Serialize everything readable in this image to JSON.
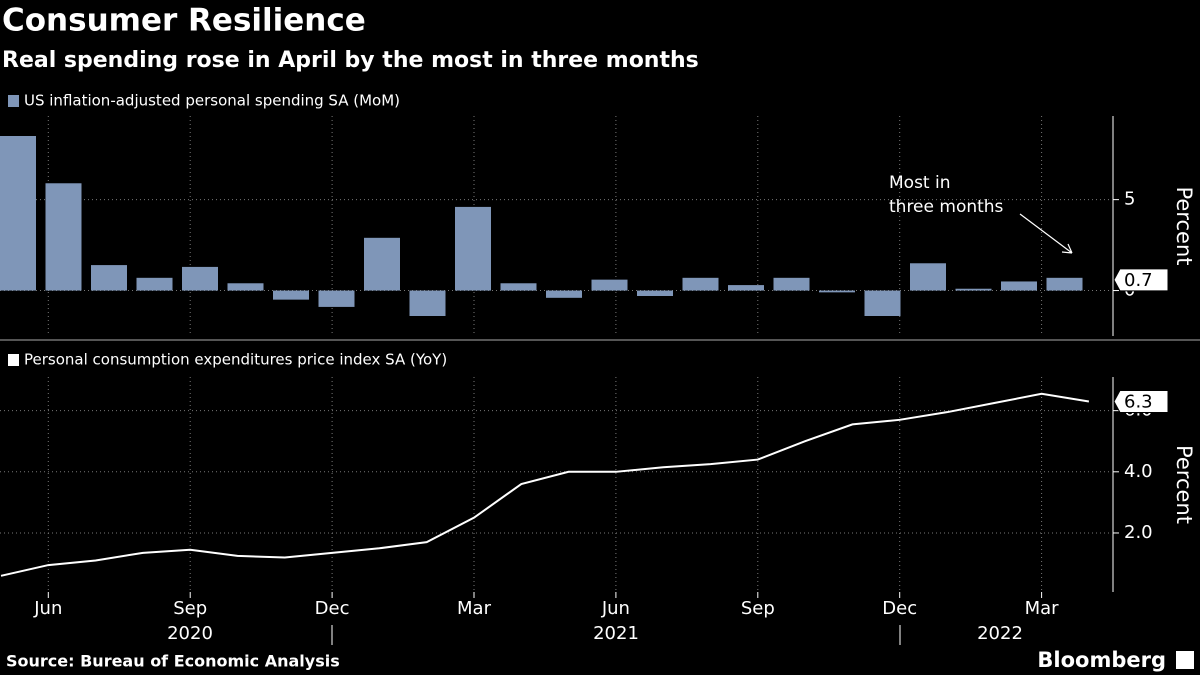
{
  "title": "Consumer Resilience",
  "subtitle": "Real spending rose in April by the most in three months",
  "source": "Source: Bureau of Economic Analysis",
  "brand": "Bloomberg",
  "years": [
    "2020",
    "2021",
    "2022"
  ],
  "chart_data": [
    {
      "type": "bar",
      "series": [
        {
          "name": "US inflation-adjusted personal spending SA (MoM)",
          "color": "#7f96b8",
          "values": [
            8.5,
            5.9,
            1.4,
            0.7,
            1.3,
            0.4,
            -0.5,
            -0.9,
            2.9,
            -1.4,
            4.6,
            0.4,
            -0.4,
            0.6,
            -0.3,
            0.7,
            0.3,
            0.7,
            -0.1,
            -1.4,
            1.5,
            0.1,
            0.5,
            0.7
          ]
        }
      ],
      "categories": [
        null,
        "Jun",
        null,
        null,
        "Sep",
        null,
        null,
        "Dec",
        null,
        null,
        "Mar",
        null,
        null,
        "Jun",
        null,
        null,
        "Sep",
        null,
        null,
        "Dec",
        null,
        null,
        "Mar",
        null
      ],
      "ylim": [
        -2.5,
        9.6
      ],
      "yticks": [
        0,
        5
      ],
      "ylabel": "Percent",
      "annotation": [
        "Most in",
        "three months"
      ],
      "grid": true
    },
    {
      "type": "line",
      "series": [
        {
          "name": "Personal consumption expenditures price index SA (YoY)",
          "color": "#ffffff",
          "values": [
            0.6,
            0.95,
            1.1,
            1.35,
            1.45,
            1.25,
            1.2,
            1.35,
            1.5,
            1.7,
            2.5,
            3.6,
            4.0,
            4.0,
            4.15,
            4.25,
            4.4,
            5.0,
            5.55,
            5.7,
            5.95,
            6.25,
            6.55,
            6.3
          ]
        }
      ],
      "categories": [
        null,
        "Jun",
        null,
        null,
        "Sep",
        null,
        null,
        "Dec",
        null,
        null,
        "Mar",
        null,
        null,
        "Jun",
        null,
        null,
        "Sep",
        null,
        null,
        "Dec",
        null,
        null,
        "Mar",
        null
      ],
      "ylim": [
        0.07,
        7.1
      ],
      "yticks": [
        {
          "value": 2,
          "label": "2.0"
        },
        {
          "value": 4,
          "label": "4.0"
        },
        {
          "value": 6,
          "label": "6.0"
        }
      ],
      "ylabel": "Percent",
      "grid": true
    }
  ]
}
